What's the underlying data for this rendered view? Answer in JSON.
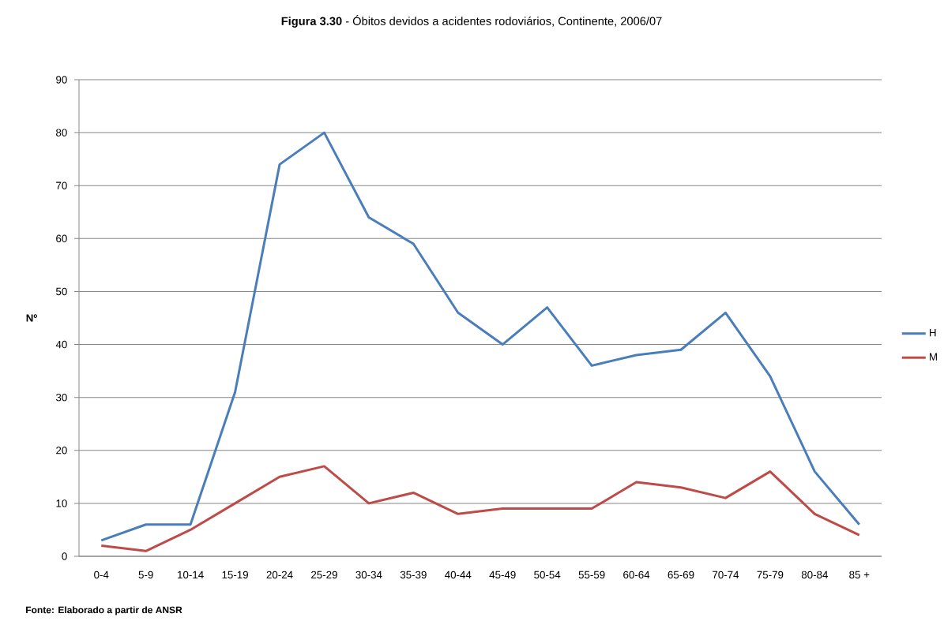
{
  "chart_data": {
    "type": "line",
    "title": "**Figura 3.30** - Óbitos devidos a acidentes rodoviários, Continente, 2006/07",
    "ylabel": "Nº",
    "categories": [
      "0-4",
      "5-9",
      "10-14",
      "15-19",
      "20-24",
      "25-29",
      "30-34",
      "35-39",
      "40-44",
      "45-49",
      "50-54",
      "55-59",
      "60-64",
      "65-69",
      "70-74",
      "75-79",
      "80-84",
      "85 +"
    ],
    "series": [
      {
        "name": "H",
        "color": "#4a7ebb",
        "values": [
          3,
          6,
          6,
          31,
          74,
          80,
          64,
          59,
          46,
          40,
          47,
          36,
          38,
          39,
          46,
          34,
          16,
          6
        ]
      },
      {
        "name": "M",
        "color": "#be4b48",
        "values": [
          2,
          1,
          5,
          10,
          15,
          17,
          10,
          12,
          8,
          9,
          9,
          9,
          14,
          13,
          11,
          16,
          8,
          4
        ]
      }
    ],
    "ylim": [
      0,
      90
    ],
    "yticks": [
      0,
      10,
      20,
      30,
      40,
      50,
      60,
      70,
      80,
      90
    ],
    "grid": "y",
    "legend": "right",
    "marker": "none",
    "line_style": "solid",
    "annotations": [
      "Fonte: Elaborado a partir de ANSR"
    ]
  }
}
